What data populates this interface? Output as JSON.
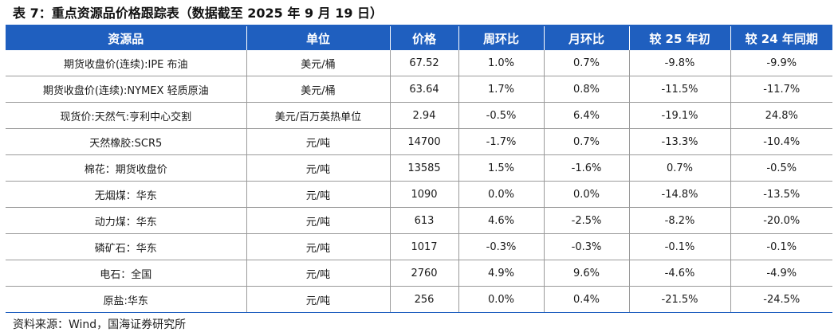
{
  "title": "表 7：重点资源品价格跟踪表（数据截至 2025 年 9 月 19 日）",
  "table": {
    "headers": [
      "资源品",
      "单位",
      "价格",
      "周环比",
      "月环比",
      "较 25 年初",
      "较 24 年同期"
    ],
    "rows": [
      [
        "期货收盘价(连续):IPE 布油",
        "美元/桶",
        "67.52",
        "1.0%",
        "0.7%",
        "-9.8%",
        "-9.9%"
      ],
      [
        "期货收盘价(连续):NYMEX 轻质原油",
        "美元/桶",
        "63.64",
        "1.7%",
        "0.8%",
        "-11.5%",
        "-11.7%"
      ],
      [
        "现货价:天然气:亨利中心交割",
        "美元/百万英热单位",
        "2.94",
        "-0.5%",
        "6.4%",
        "-19.1%",
        "24.8%"
      ],
      [
        "天然橡胶:SCR5",
        "元/吨",
        "14700",
        "-1.7%",
        "0.7%",
        "-13.3%",
        "-10.4%"
      ],
      [
        "棉花：期货收盘价",
        "元/吨",
        "13585",
        "1.5%",
        "-1.6%",
        "0.7%",
        "-0.5%"
      ],
      [
        "无烟煤：华东",
        "元/吨",
        "1090",
        "0.0%",
        "0.0%",
        "-14.8%",
        "-13.5%"
      ],
      [
        "动力煤：华东",
        "元/吨",
        "613",
        "4.6%",
        "-2.5%",
        "-8.2%",
        "-20.0%"
      ],
      [
        "磷矿石：华东",
        "元/吨",
        "1017",
        "-0.3%",
        "-0.3%",
        "-0.1%",
        "-0.1%"
      ],
      [
        "电石：全国",
        "元/吨",
        "2760",
        "4.9%",
        "9.6%",
        "-4.6%",
        "-4.9%"
      ],
      [
        "原盐:华东",
        "元/吨",
        "256",
        "0.0%",
        "0.4%",
        "-21.5%",
        "-24.5%"
      ]
    ]
  },
  "source": "资料来源：Wind，国海证券研究所",
  "colors": {
    "header_bg": "#1f5fbf",
    "header_text": "#ffffff"
  }
}
